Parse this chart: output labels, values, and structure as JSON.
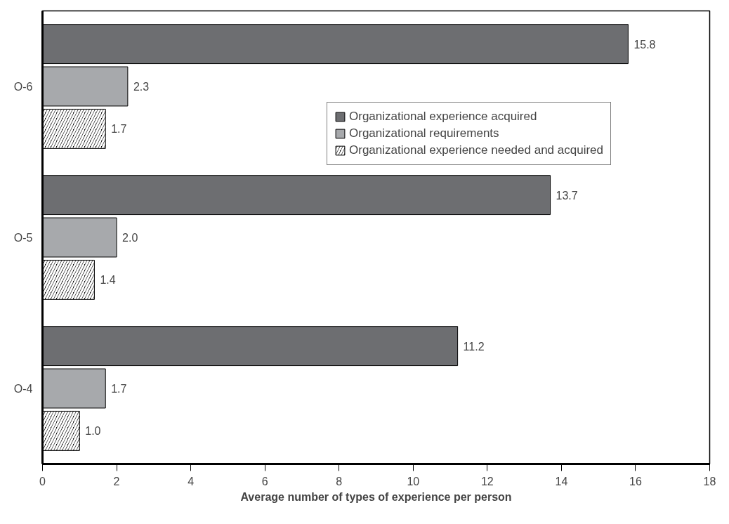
{
  "chart_data": {
    "type": "bar",
    "orientation": "horizontal",
    "categories": [
      "O-6",
      "O-5",
      "O-4"
    ],
    "series": [
      {
        "name": "Organizational experience acquired",
        "color": "#6d6e71",
        "values": [
          15.8,
          13.7,
          11.2
        ],
        "value_labels": [
          "15.8",
          "13.7",
          "11.2"
        ]
      },
      {
        "name": "Organizational requirements",
        "color": "#a7a9ac",
        "values": [
          2.3,
          2.0,
          1.7
        ],
        "value_labels": [
          "2.3",
          "2.0",
          "1.7"
        ]
      },
      {
        "name": "Organizational experience needed and acquired",
        "color": "#000000",
        "values": [
          1.7,
          1.4,
          1.0
        ],
        "value_labels": [
          "1.7",
          "1.4",
          "1.0"
        ]
      }
    ],
    "xlabel": "Average number of types of experience per person",
    "xlim": [
      0,
      18
    ],
    "xticks": [
      0,
      2,
      4,
      6,
      8,
      10,
      12,
      14,
      16,
      18
    ],
    "legend": "top right",
    "grid": false
  }
}
